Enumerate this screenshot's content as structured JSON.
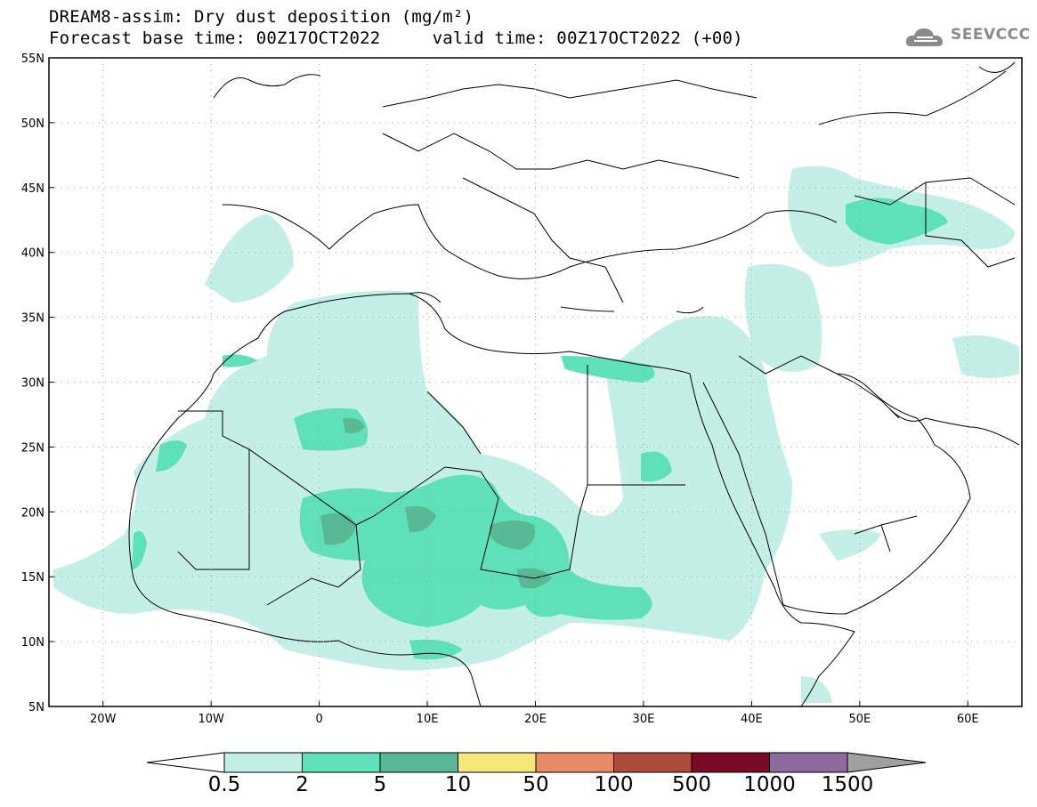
{
  "header": {
    "title_line1": "DREAM8-assim: Dry dust deposition (mg/m²)",
    "title_line2": "Forecast base time: 00Z17OCT2022     valid time: 00Z17OCT2022 (+00)"
  },
  "logo": {
    "text": "SEEVCCC",
    "icon": "cloud-logo-icon"
  },
  "map": {
    "lon_range": [
      -25,
      65
    ],
    "lat_range": [
      5,
      55
    ],
    "lon_ticks": [
      {
        "value": -20,
        "label": "20W"
      },
      {
        "value": -10,
        "label": "10W"
      },
      {
        "value": 0,
        "label": "0"
      },
      {
        "value": 10,
        "label": "10E"
      },
      {
        "value": 20,
        "label": "20E"
      },
      {
        "value": 30,
        "label": "30E"
      },
      {
        "value": 40,
        "label": "40E"
      },
      {
        "value": 50,
        "label": "50E"
      },
      {
        "value": 60,
        "label": "60E"
      }
    ],
    "lat_ticks": [
      {
        "value": 55,
        "label": "55N"
      },
      {
        "value": 50,
        "label": "50N"
      },
      {
        "value": 45,
        "label": "45N"
      },
      {
        "value": 40,
        "label": "40N"
      },
      {
        "value": 35,
        "label": "35N"
      },
      {
        "value": 30,
        "label": "30N"
      },
      {
        "value": 25,
        "label": "25N"
      },
      {
        "value": 20,
        "label": "20N"
      },
      {
        "value": 15,
        "label": "15N"
      },
      {
        "value": 10,
        "label": "10N"
      },
      {
        "value": 5,
        "label": "5N"
      }
    ],
    "grid": "dotted"
  },
  "colorbar": {
    "labels": [
      "0.5",
      "2",
      "5",
      "10",
      "50",
      "100",
      "500",
      "1000",
      "1500"
    ],
    "colors": [
      "#ffffff",
      "#c4efe7",
      "#5ee0b8",
      "#58b994",
      "#f5e77a",
      "#e98c65",
      "#ad4a3c",
      "#7a0a26",
      "#8e6b9e",
      "#a0a0a0"
    ]
  }
}
